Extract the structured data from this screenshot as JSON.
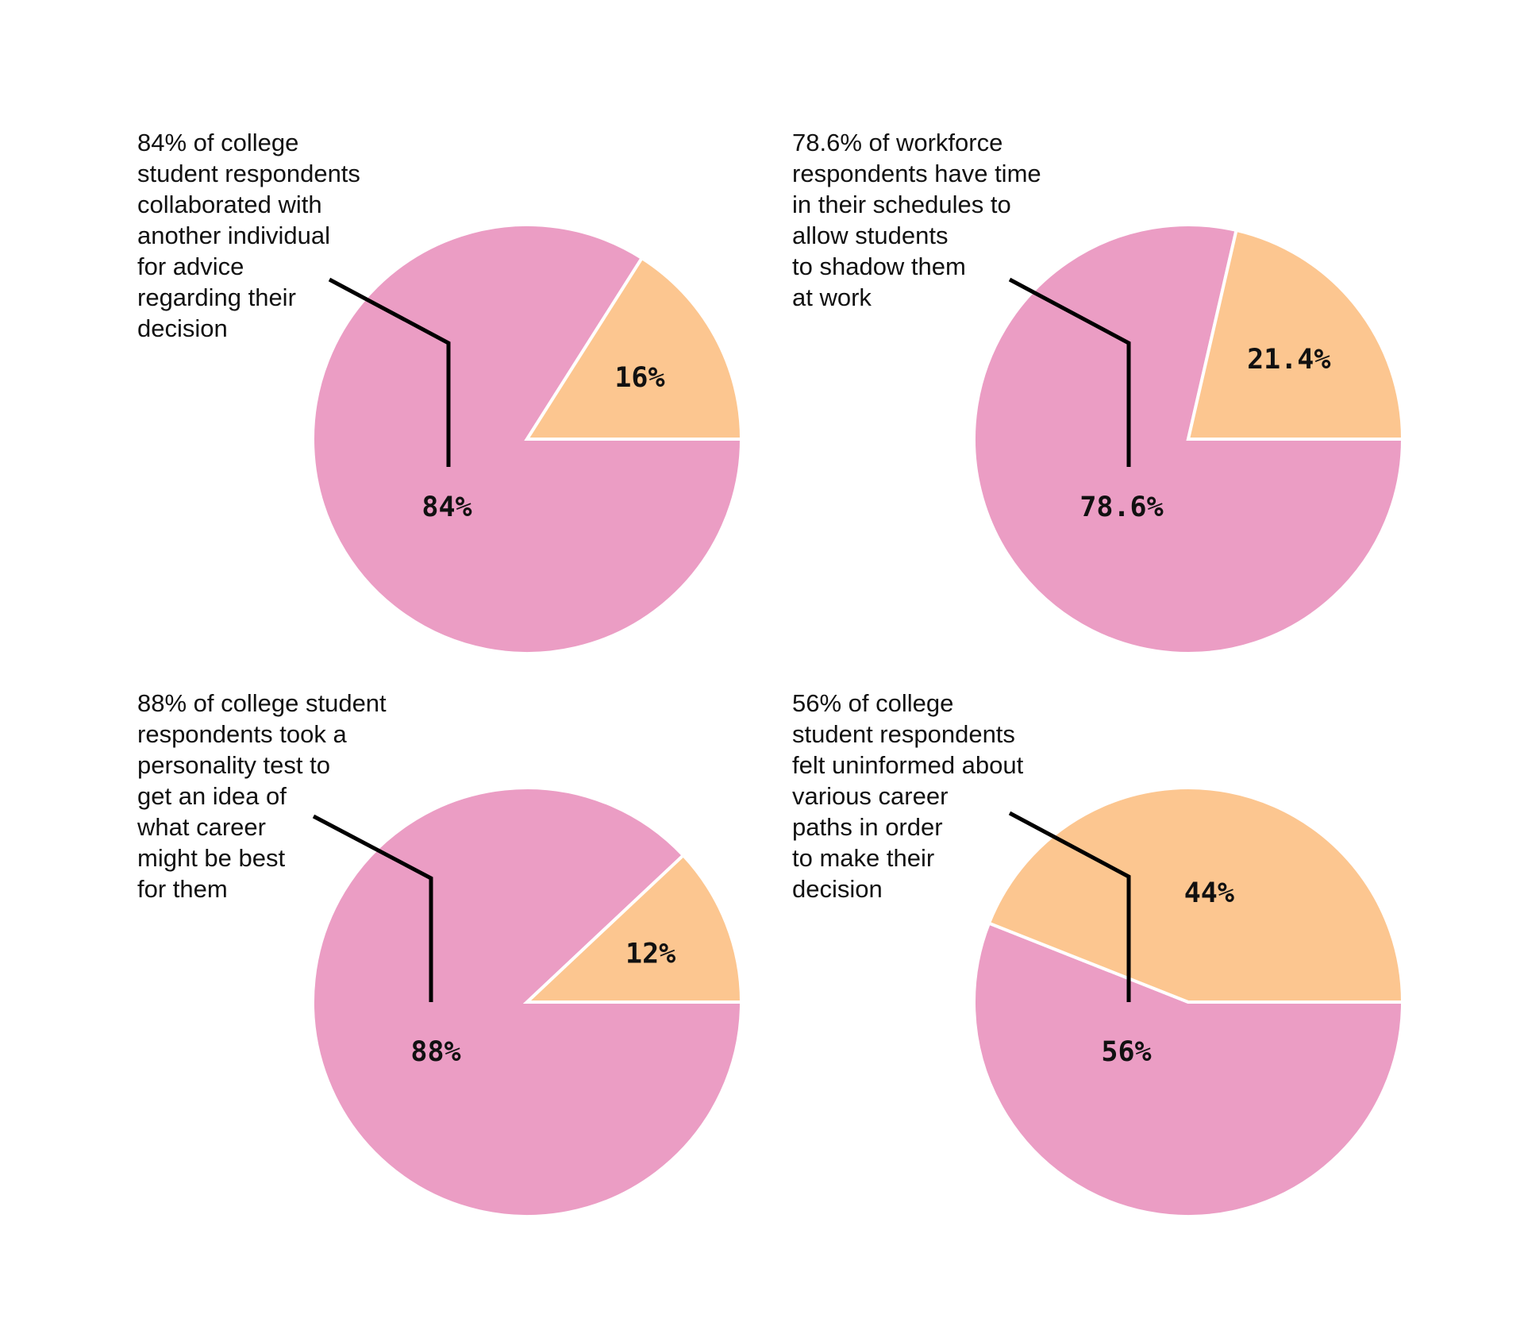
{
  "colors": {
    "major": "#EB9DC4",
    "minor": "#FCC690",
    "text": "#111111",
    "leader": "#000000"
  },
  "chart_data": [
    {
      "type": "pie",
      "caption": [
        "84% of college",
        "student respondents",
        "collaborated with",
        "another individual",
        "for advice",
        "regarding their",
        "decision"
      ],
      "slices": [
        {
          "value": 84,
          "label": "84%",
          "color": "#EB9DC4"
        },
        {
          "value": 16,
          "label": "16%",
          "color": "#FCC690"
        }
      ]
    },
    {
      "type": "pie",
      "caption": [
        "78.6% of workforce",
        "respondents have time",
        "in their schedules to",
        "allow students",
        "to shadow them",
        "at work"
      ],
      "slices": [
        {
          "value": 78.6,
          "label": "78.6%",
          "color": "#EB9DC4"
        },
        {
          "value": 21.4,
          "label": "21.4%",
          "color": "#FCC690"
        }
      ]
    },
    {
      "type": "pie",
      "caption": [
        "88% of college student",
        "respondents took a",
        "personality test to",
        "get an idea of",
        "what career",
        "might be best",
        "for them"
      ],
      "slices": [
        {
          "value": 88,
          "label": "88%",
          "color": "#EB9DC4"
        },
        {
          "value": 12,
          "label": "12%",
          "color": "#FCC690"
        }
      ]
    },
    {
      "type": "pie",
      "caption": [
        "56% of college",
        "student respondents",
        "felt uninformed about",
        "various career",
        "paths in order",
        "to make their",
        "decision"
      ],
      "slices": [
        {
          "value": 56,
          "label": "56%",
          "color": "#EB9DC4"
        },
        {
          "value": 44,
          "label": "44%",
          "color": "#FCC690"
        }
      ]
    }
  ]
}
